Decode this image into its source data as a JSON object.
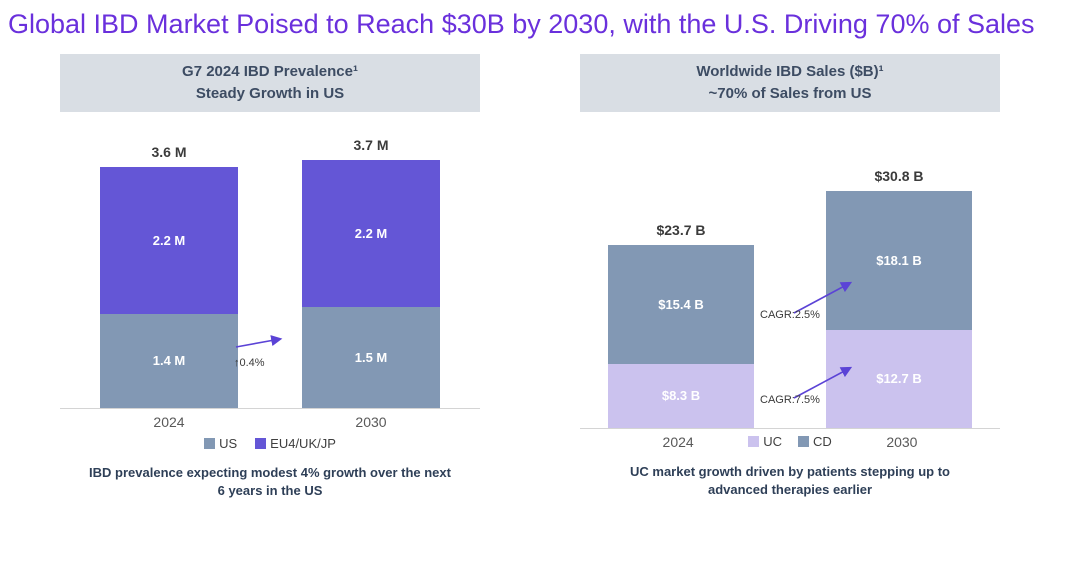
{
  "title": "Global IBD Market Poised to Reach $30B by 2030, with the U.S. Driving 70% of Sales",
  "colors": {
    "accent": "#5B43D6",
    "title_text": "#6A30DC",
    "purple": "#6456D6",
    "bluegray": "#8298B4",
    "lavender": "#CBC2EE",
    "header_bg": "#D9DEE4",
    "caption_text": "#2E3F57"
  },
  "chart_data": [
    {
      "type": "bar",
      "stacked": true,
      "header_line1": "G7 2024 IBD Prevalence¹",
      "header_line2": "Steady Growth in US",
      "categories": [
        "2024",
        "2030"
      ],
      "series": [
        {
          "name": "US",
          "color": "bluegray",
          "values": [
            1.4,
            1.5
          ],
          "labels": [
            "1.4 M",
            "1.5 M"
          ]
        },
        {
          "name": "EU4/UK/JP",
          "color": "purple",
          "values": [
            2.2,
            2.2
          ],
          "labels": [
            "2.2 M",
            "2.2 M"
          ]
        }
      ],
      "totals": [
        "3.6 M",
        "3.7 M"
      ],
      "ylim": [
        0,
        3.7
      ],
      "legend_position": "bottom",
      "annotations": [
        {
          "text": "↑0.4%"
        }
      ],
      "caption": "IBD prevalence expecting modest 4% growth over the next 6 years in the US"
    },
    {
      "type": "bar",
      "stacked": true,
      "header_line1": "Worldwide IBD Sales ($B)¹",
      "header_line2": "~70% of Sales from US",
      "categories": [
        "2024",
        "2030"
      ],
      "series": [
        {
          "name": "UC",
          "color": "lavender",
          "values": [
            8.3,
            12.7
          ],
          "labels": [
            "$8.3 B",
            "$12.7 B"
          ]
        },
        {
          "name": "CD",
          "color": "bluegray",
          "values": [
            15.4,
            18.1
          ],
          "labels": [
            "$15.4 B",
            "$18.1 B"
          ]
        }
      ],
      "totals": [
        "$23.7 B",
        "$30.8 B"
      ],
      "ylim": [
        0,
        30.8
      ],
      "legend_position": "bottom-inline",
      "annotations": [
        {
          "text": "CAGR:2.5%"
        },
        {
          "text": "CAGR:7.5%"
        }
      ],
      "caption": "UC market growth driven by patients stepping up to advanced therapies earlier"
    }
  ]
}
